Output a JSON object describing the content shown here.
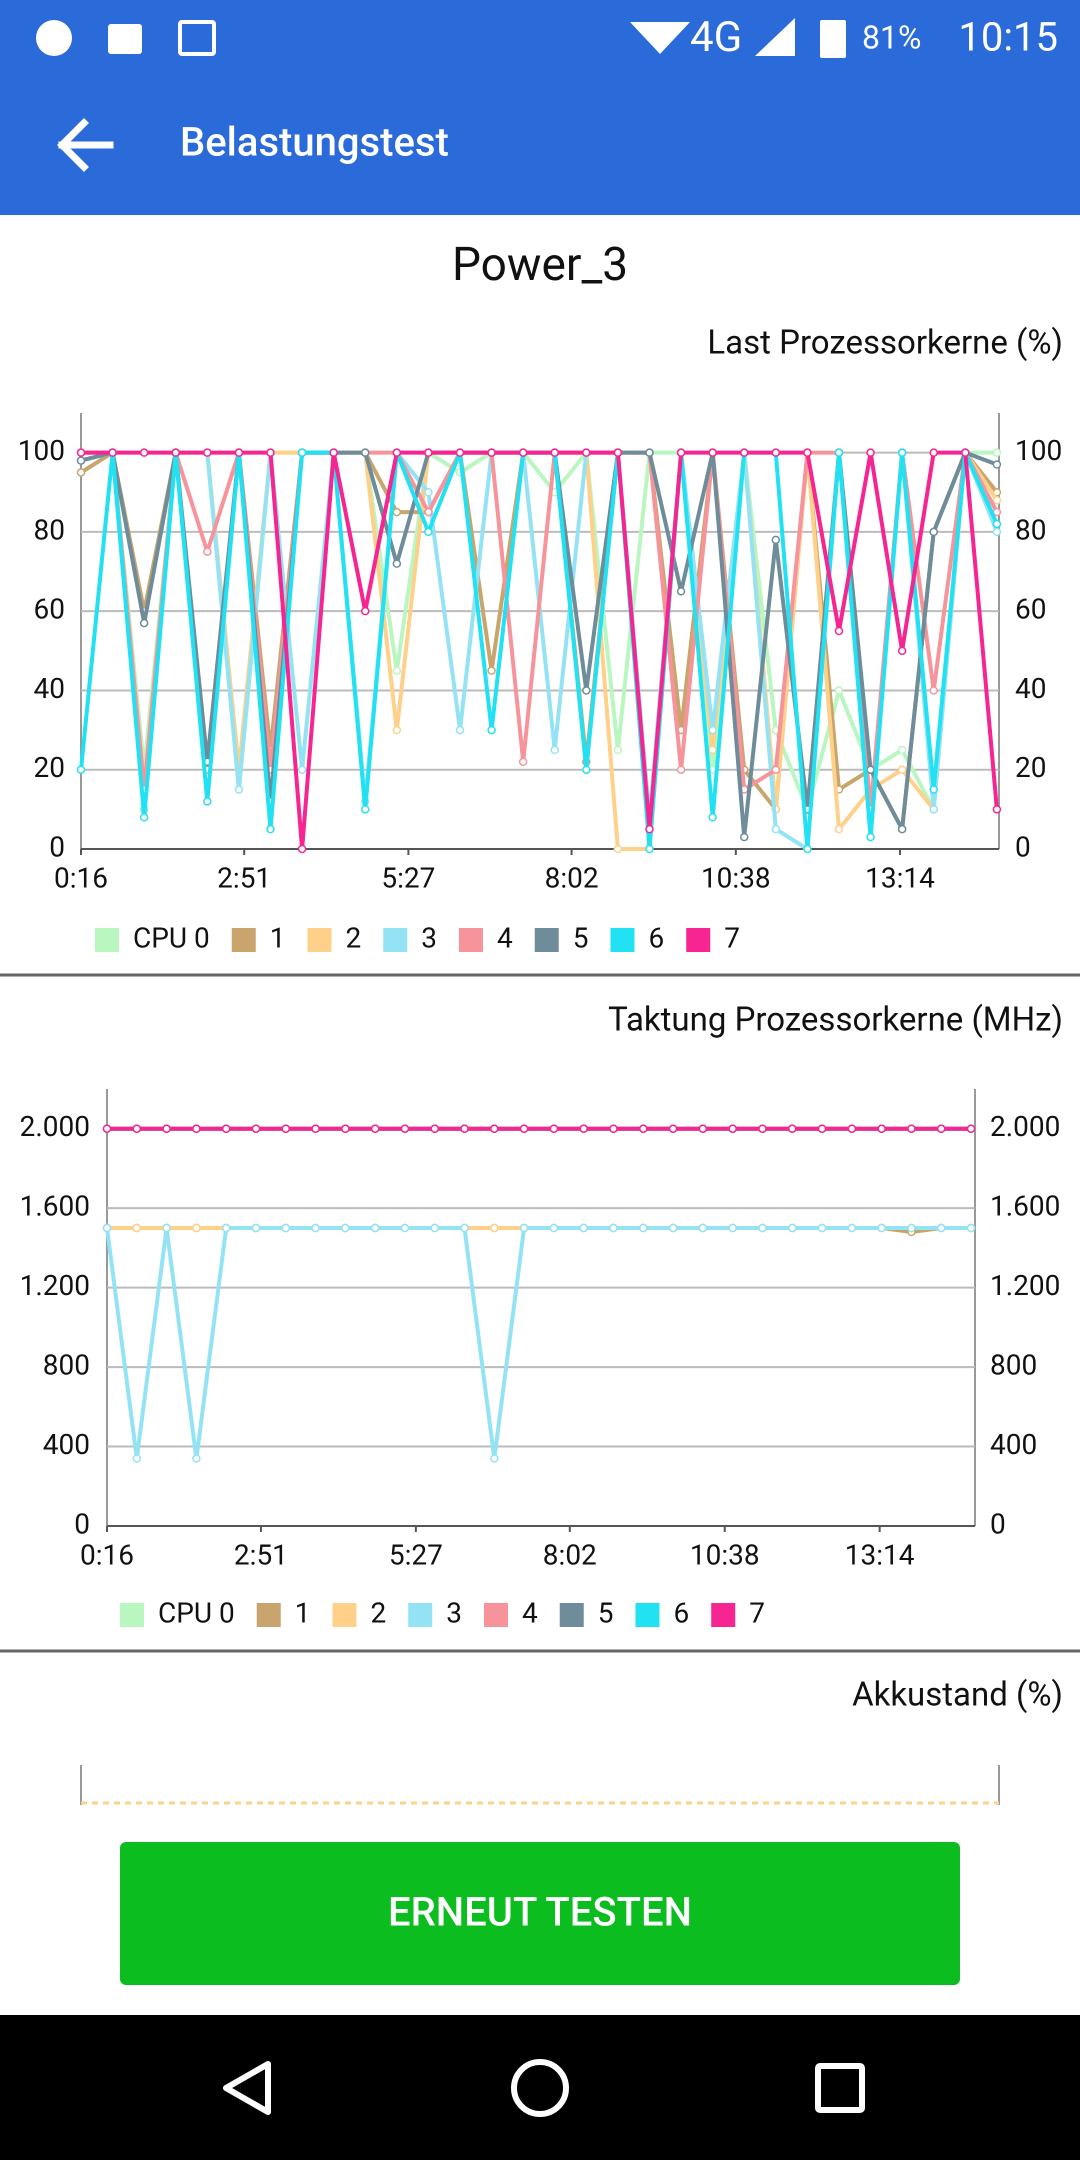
{
  "status_bar": {
    "network": "4G",
    "battery": "81%",
    "time": "10:15"
  },
  "app_bar": {
    "title": "Belastungstest"
  },
  "test_name": "Power_3",
  "chart_data": [
    {
      "type": "line",
      "title": "Last Prozessorkerne (%)",
      "x": [
        16,
        46,
        76,
        106,
        136,
        166,
        196,
        226,
        256,
        286,
        316,
        346,
        376,
        406,
        436,
        466,
        496,
        526,
        556,
        586,
        616,
        646,
        676,
        706,
        736,
        766,
        796,
        826,
        856,
        886
      ],
      "xlim": [
        16,
        888
      ],
      "xticks": [
        {
          "value": 16,
          "label": "0:16"
        },
        {
          "value": 171,
          "label": "2:51"
        },
        {
          "value": 327,
          "label": "5:27"
        },
        {
          "value": 482,
          "label": "8:02"
        },
        {
          "value": 638,
          "label": "10:38"
        },
        {
          "value": 794,
          "label": "13:14"
        }
      ],
      "ylim": [
        0,
        110
      ],
      "yticks": [
        0,
        20,
        40,
        60,
        80,
        100
      ],
      "grid": true,
      "series": [
        {
          "name": "CPU 0",
          "color": "#b9f6c0",
          "values": [
            100,
            100,
            20,
            100,
            100,
            15,
            100,
            100,
            100,
            100,
            45,
            100,
            95,
            100,
            100,
            90,
            100,
            25,
            100,
            100,
            20,
            100,
            30,
            10,
            40,
            20,
            25,
            10,
            100,
            100
          ]
        },
        {
          "name": "1",
          "color": "#c9a56d",
          "values": [
            95,
            100,
            60,
            100,
            20,
            100,
            25,
            100,
            100,
            100,
            85,
            85,
            100,
            45,
            100,
            100,
            22,
            100,
            100,
            30,
            100,
            20,
            10,
            100,
            15,
            20,
            5,
            80,
            100,
            90
          ]
        },
        {
          "name": "2",
          "color": "#ffd08a",
          "values": [
            100,
            100,
            15,
            100,
            100,
            20,
            100,
            100,
            100,
            100,
            30,
            100,
            100,
            100,
            100,
            100,
            100,
            0,
            0,
            100,
            25,
            100,
            10,
            100,
            5,
            15,
            20,
            10,
            100,
            88
          ]
        },
        {
          "name": "3",
          "color": "#93e3f5",
          "values": [
            98,
            100,
            10,
            100,
            100,
            15,
            100,
            20,
            100,
            12,
            100,
            90,
            30,
            100,
            100,
            25,
            100,
            100,
            8,
            100,
            30,
            100,
            5,
            0,
            100,
            8,
            100,
            10,
            100,
            80
          ]
        },
        {
          "name": "4",
          "color": "#f7949b",
          "values": [
            100,
            100,
            15,
            100,
            75,
            100,
            20,
            100,
            100,
            100,
            100,
            85,
            100,
            100,
            22,
            100,
            100,
            100,
            100,
            20,
            100,
            15,
            20,
            100,
            100,
            10,
            100,
            40,
            100,
            85
          ]
        },
        {
          "name": "5",
          "color": "#6e8c99",
          "values": [
            98,
            100,
            57,
            100,
            22,
            100,
            12,
            100,
            100,
            100,
            72,
            100,
            100,
            100,
            100,
            100,
            40,
            100,
            100,
            65,
            100,
            3,
            78,
            10,
            100,
            20,
            5,
            80,
            100,
            97
          ]
        },
        {
          "name": "6",
          "color": "#22e1f2",
          "values": [
            20,
            100,
            8,
            100,
            12,
            100,
            5,
            100,
            100,
            10,
            100,
            80,
            100,
            30,
            100,
            100,
            20,
            100,
            0,
            100,
            8,
            100,
            100,
            0,
            100,
            3,
            100,
            15,
            100,
            82
          ]
        },
        {
          "name": "7",
          "color": "#f72591",
          "values": [
            100,
            100,
            100,
            100,
            100,
            100,
            100,
            0,
            100,
            60,
            100,
            100,
            100,
            100,
            100,
            100,
            100,
            100,
            5,
            100,
            100,
            100,
            100,
            100,
            55,
            100,
            50,
            100,
            100,
            10
          ]
        }
      ]
    },
    {
      "type": "line",
      "title": "Taktung Prozessorkerne (MHz)",
      "x": [
        16,
        46,
        76,
        106,
        136,
        166,
        196,
        226,
        256,
        286,
        316,
        346,
        376,
        406,
        436,
        466,
        496,
        526,
        556,
        586,
        616,
        646,
        676,
        706,
        736,
        766,
        796,
        826,
        856,
        886
      ],
      "xlim": [
        16,
        890
      ],
      "xticks": [
        {
          "value": 16,
          "label": "0:16"
        },
        {
          "value": 171,
          "label": "2:51"
        },
        {
          "value": 327,
          "label": "5:27"
        },
        {
          "value": 482,
          "label": "8:02"
        },
        {
          "value": 638,
          "label": "10:38"
        },
        {
          "value": 794,
          "label": "13:14"
        }
      ],
      "ylim": [
        0,
        2200
      ],
      "yticks": [
        0,
        400,
        800,
        {
          "value": 1200,
          "label": "1.200"
        },
        {
          "value": 1600,
          "label": "1.600"
        },
        {
          "value": 2000,
          "label": "2.000"
        }
      ],
      "grid": true,
      "series": [
        {
          "name": "CPU 0",
          "color": "#b9f6c0",
          "values": [
            1500,
            1500,
            1500,
            1500,
            1500,
            1500,
            1500,
            1500,
            1500,
            1500,
            1500,
            1500,
            1500,
            1500,
            1500,
            1500,
            1500,
            1500,
            1500,
            1500,
            1500,
            1500,
            1500,
            1500,
            1500,
            1500,
            1500,
            1500,
            1500,
            1500
          ]
        },
        {
          "name": "1",
          "color": "#c9a56d",
          "values": [
            1500,
            1500,
            1500,
            1500,
            1500,
            1500,
            1500,
            1500,
            1500,
            1500,
            1500,
            1500,
            1500,
            1500,
            1500,
            1500,
            1500,
            1500,
            1500,
            1500,
            1500,
            1500,
            1500,
            1500,
            1500,
            1500,
            1500,
            1480,
            1500,
            1500
          ]
        },
        {
          "name": "2",
          "color": "#ffd08a",
          "values": [
            1500,
            1500,
            1500,
            1500,
            1500,
            1500,
            1500,
            1500,
            1500,
            1500,
            1500,
            1500,
            1500,
            1500,
            1500,
            1500,
            1500,
            1500,
            1500,
            1500,
            1500,
            1500,
            1500,
            1500,
            1500,
            1500,
            1500,
            1500,
            1500,
            1500
          ]
        },
        {
          "name": "3",
          "color": "#93e3f5",
          "values": [
            1500,
            340,
            1500,
            340,
            1500,
            1500,
            1500,
            1500,
            1500,
            1500,
            1500,
            1500,
            1500,
            340,
            1500,
            1500,
            1500,
            1500,
            1500,
            1500,
            1500,
            1500,
            1500,
            1500,
            1500,
            1500,
            1500,
            1500,
            1500,
            1500
          ]
        },
        {
          "name": "4",
          "color": "#f7949b",
          "values": [
            2000,
            2000,
            2000,
            2000,
            2000,
            2000,
            2000,
            2000,
            2000,
            2000,
            2000,
            2000,
            2000,
            2000,
            2000,
            2000,
            2000,
            2000,
            2000,
            2000,
            2000,
            2000,
            2000,
            2000,
            2000,
            2000,
            2000,
            2000,
            2000,
            2000
          ]
        },
        {
          "name": "5",
          "color": "#6e8c99",
          "values": [
            2000,
            2000,
            2000,
            2000,
            2000,
            2000,
            2000,
            2000,
            2000,
            2000,
            2000,
            2000,
            2000,
            2000,
            2000,
            2000,
            2000,
            2000,
            2000,
            2000,
            2000,
            2000,
            2000,
            2000,
            2000,
            2000,
            2000,
            2000,
            2000,
            2000
          ]
        },
        {
          "name": "6",
          "color": "#22e1f2",
          "values": [
            2000,
            2000,
            2000,
            2000,
            2000,
            2000,
            2000,
            2000,
            2000,
            2000,
            2000,
            2000,
            2000,
            2000,
            2000,
            2000,
            2000,
            2000,
            2000,
            2000,
            2000,
            2000,
            2000,
            2000,
            2000,
            2000,
            2000,
            2000,
            2000,
            2000
          ]
        },
        {
          "name": "7",
          "color": "#f72591",
          "values": [
            2000,
            2000,
            2000,
            2000,
            2000,
            2000,
            2000,
            2000,
            2000,
            2000,
            2000,
            2000,
            2000,
            2000,
            2000,
            2000,
            2000,
            2000,
            2000,
            2000,
            2000,
            2000,
            2000,
            2000,
            2000,
            2000,
            2000,
            2000,
            2000,
            2000
          ]
        }
      ]
    }
  ],
  "battery": {
    "title": "Akkustand (%)"
  },
  "button": {
    "label": "ERNEUT TESTEN"
  }
}
